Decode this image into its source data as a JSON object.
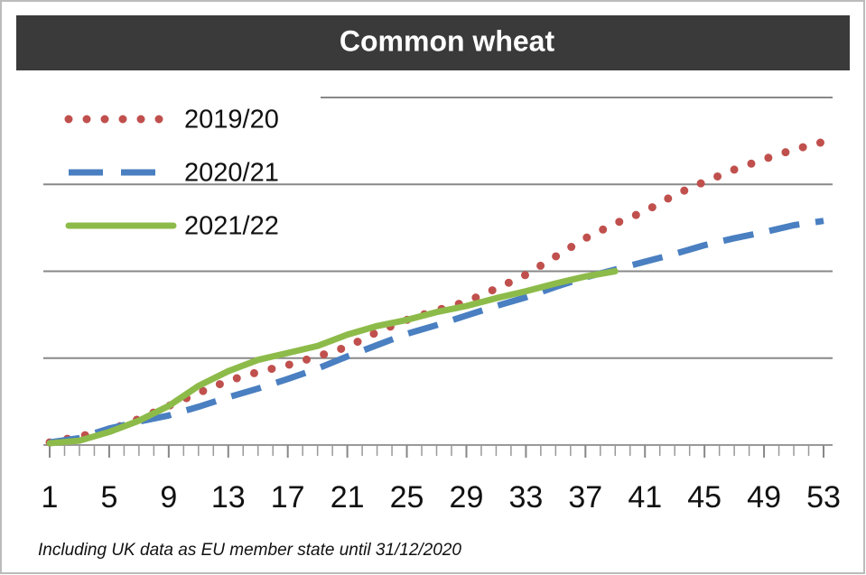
{
  "chart_data": {
    "type": "line",
    "title": "Common wheat",
    "note": "Including UK data as EU member state until 31/12/2020",
    "x": [
      1,
      3,
      5,
      7,
      9,
      11,
      13,
      15,
      17,
      19,
      21,
      23,
      25,
      27,
      29,
      31,
      33,
      35,
      37,
      39,
      41,
      43,
      45,
      47,
      49,
      51,
      53
    ],
    "series": [
      {
        "name": "2019/20",
        "color": "#c0504d",
        "style": "dotted",
        "values": [
          0.03,
          0.1,
          0.17,
          0.3,
          0.45,
          0.6,
          0.74,
          0.84,
          0.92,
          1.02,
          1.13,
          1.3,
          1.44,
          1.55,
          1.65,
          1.8,
          1.96,
          2.17,
          2.38,
          2.55,
          2.69,
          2.88,
          3.03,
          3.17,
          3.29,
          3.4,
          3.49
        ]
      },
      {
        "name": "2020/21",
        "color": "#4a7fc1",
        "style": "dashed",
        "values": [
          0.03,
          0.08,
          0.19,
          0.27,
          0.34,
          0.44,
          0.55,
          0.65,
          0.76,
          0.88,
          1.02,
          1.15,
          1.28,
          1.38,
          1.49,
          1.6,
          1.7,
          1.82,
          1.93,
          2.02,
          2.11,
          2.2,
          2.3,
          2.38,
          2.45,
          2.53,
          2.58
        ]
      },
      {
        "name": "2021/22",
        "color": "#8dbb4a",
        "style": "solid",
        "values": [
          0.02,
          0.05,
          0.15,
          0.28,
          0.45,
          0.68,
          0.85,
          0.98,
          1.06,
          1.14,
          1.27,
          1.37,
          1.44,
          1.53,
          1.6,
          1.69,
          1.77,
          1.86,
          1.94,
          2.0,
          null,
          null,
          null,
          null,
          null,
          null,
          null
        ]
      }
    ],
    "xlim": [
      1,
      53
    ],
    "xticks": [
      1,
      5,
      9,
      13,
      17,
      21,
      25,
      29,
      33,
      37,
      41,
      45,
      49,
      53
    ],
    "ylim": [
      0,
      4
    ],
    "yticks": [
      0,
      1,
      2,
      3,
      4
    ],
    "grid": true
  }
}
